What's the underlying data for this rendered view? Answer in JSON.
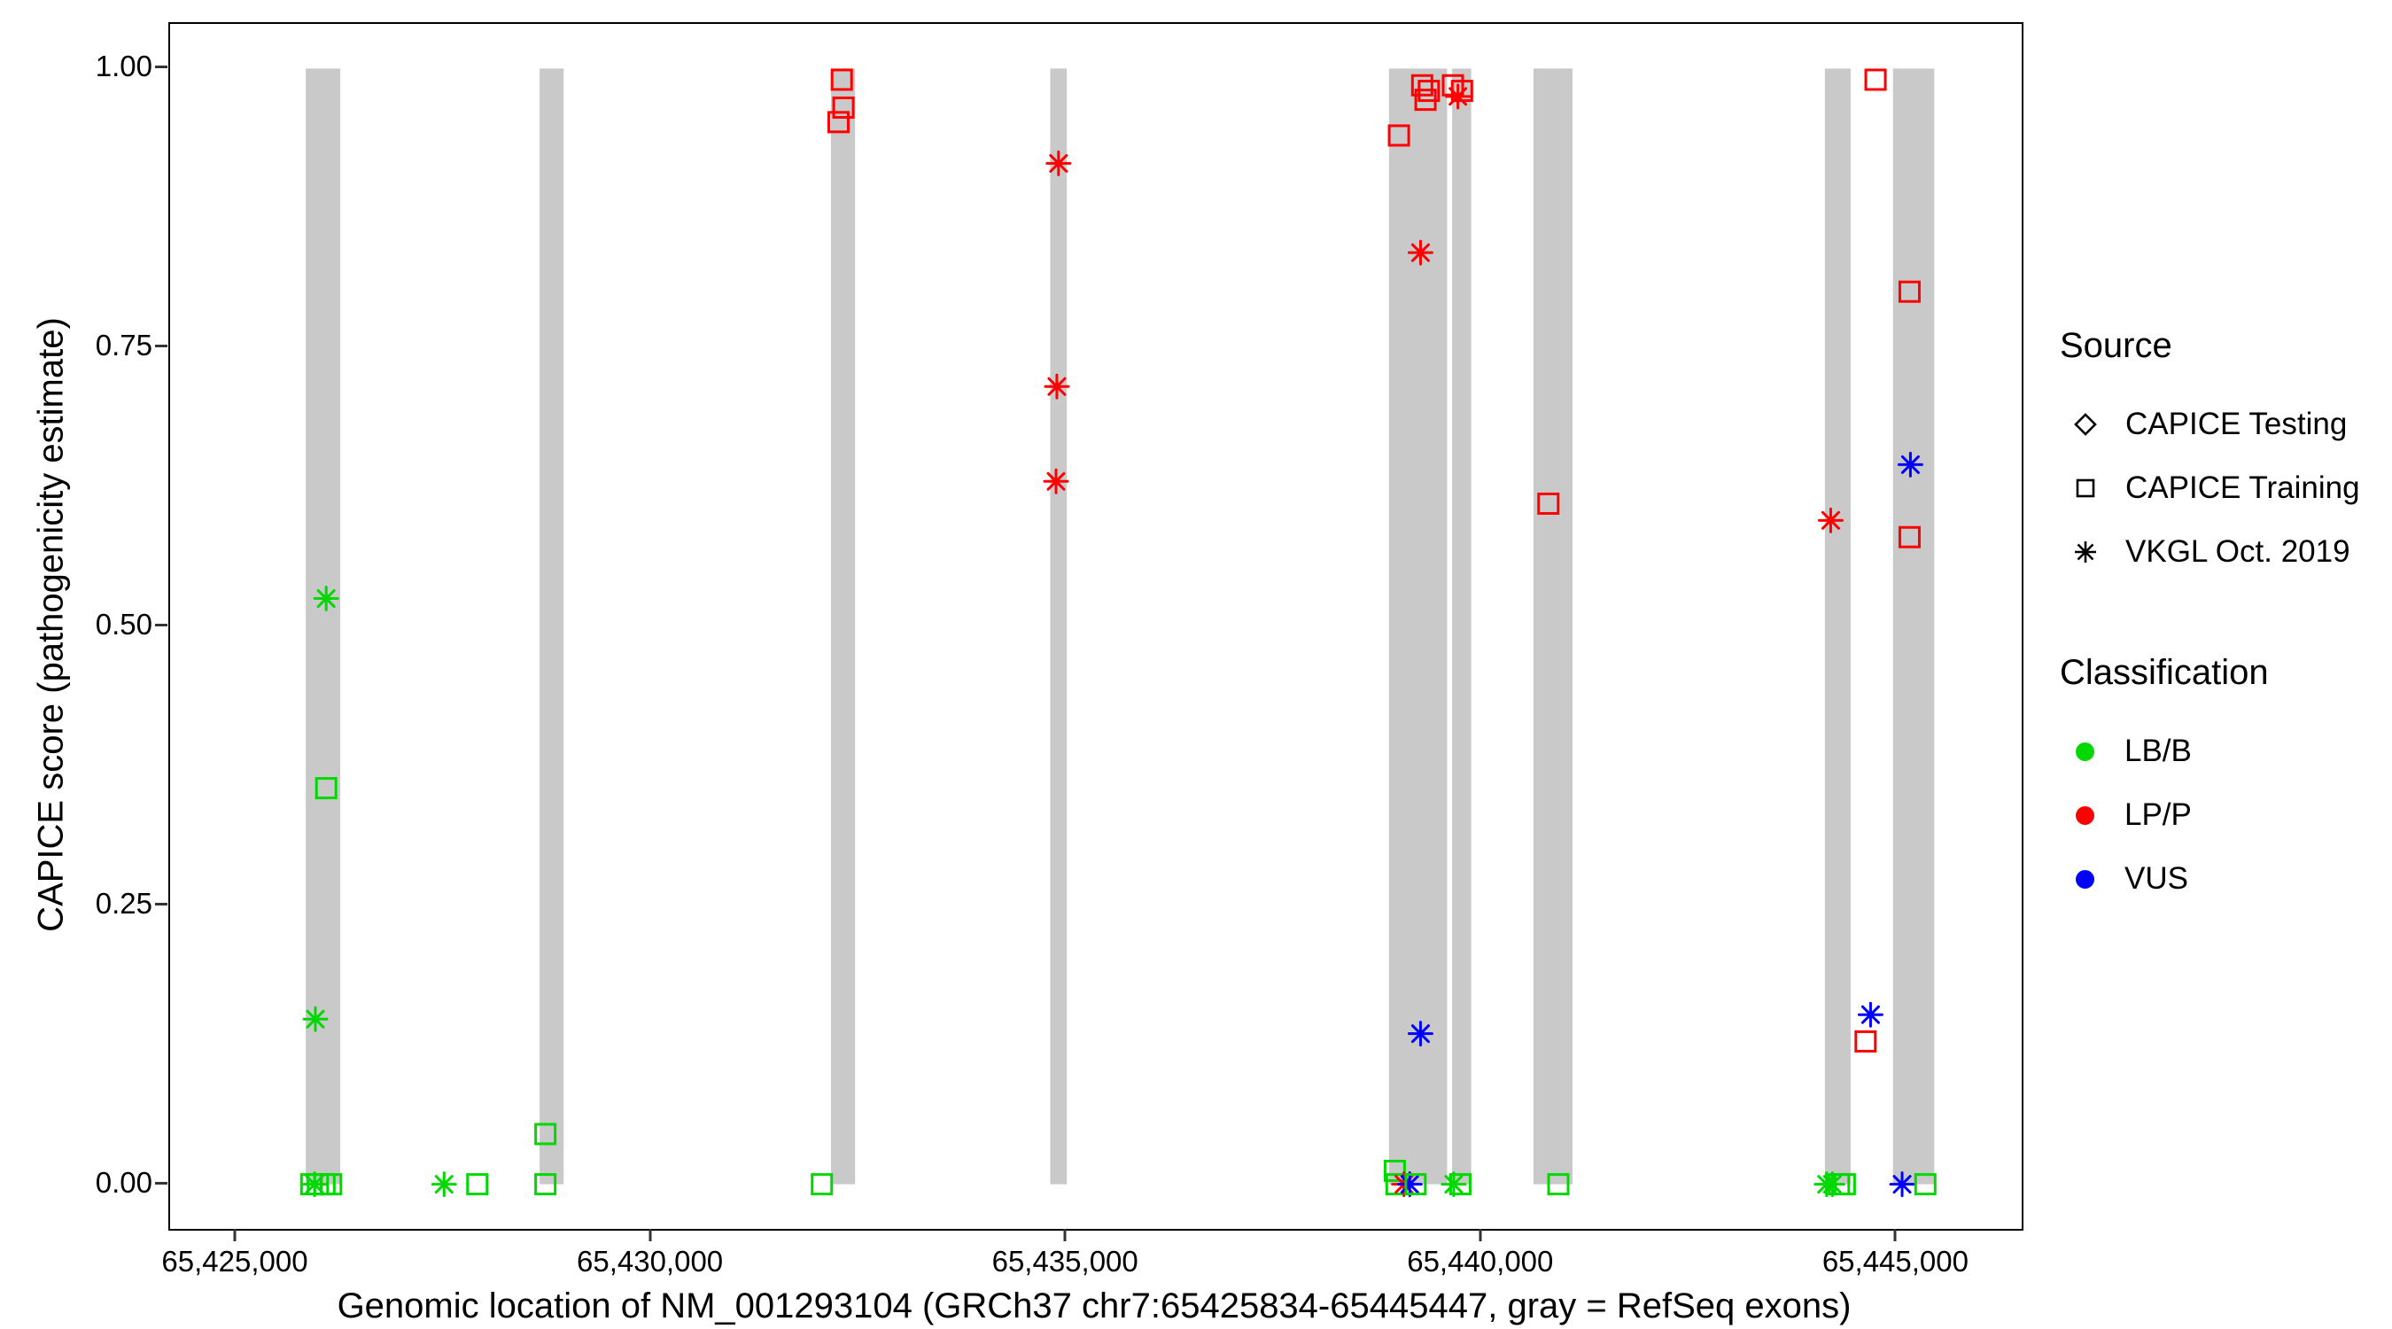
{
  "chart_data": {
    "type": "scatter",
    "title": "",
    "xlabel": "Genomic location of NM_001293104 (GRCh37 chr7:65425834-65445447, gray = RefSeq exons)",
    "ylabel": "CAPICE score (pathogenicity estimate)",
    "xlim": [
      65424200,
      65446500
    ],
    "ylim": [
      -0.04,
      1.04
    ],
    "grid": false,
    "legend_position": "right",
    "x_ticks": [
      {
        "value": 65425000,
        "label": "65,425,000"
      },
      {
        "value": 65430000,
        "label": "65,430,000"
      },
      {
        "value": 65435000,
        "label": "65,435,000"
      },
      {
        "value": 65440000,
        "label": "65,440,000"
      },
      {
        "value": 65445000,
        "label": "65,445,000"
      }
    ],
    "y_ticks": [
      {
        "value": 0.0,
        "label": "0.00"
      },
      {
        "value": 0.25,
        "label": "0.25"
      },
      {
        "value": 0.5,
        "label": "0.50"
      },
      {
        "value": 0.75,
        "label": "0.75"
      },
      {
        "value": 1.0,
        "label": "1.00"
      }
    ],
    "exon_color": "#c9c9c9",
    "exons": [
      [
        65425834,
        65426250
      ],
      [
        65428650,
        65428940
      ],
      [
        65432160,
        65432450
      ],
      [
        65434800,
        65435000
      ],
      [
        65438880,
        65439580
      ],
      [
        65439640,
        65439870
      ],
      [
        65440620,
        65441090
      ],
      [
        65444130,
        65444440
      ],
      [
        65444950,
        65445447
      ]
    ],
    "classification_colors": {
      "LB/B": "#00d800",
      "LP/P": "#ff0000",
      "VUS": "#0000ff"
    },
    "points": [
      {
        "x": 65425900,
        "y": 0.0,
        "shape": "square",
        "cls": "LB/B"
      },
      {
        "x": 65425980,
        "y": 0.0,
        "shape": "square",
        "cls": "LB/B"
      },
      {
        "x": 65426060,
        "y": 0.0,
        "shape": "square",
        "cls": "LB/B"
      },
      {
        "x": 65426140,
        "y": 0.0,
        "shape": "square",
        "cls": "LB/B"
      },
      {
        "x": 65425940,
        "y": 0.0,
        "shape": "asterisk",
        "cls": "LB/B"
      },
      {
        "x": 65425950,
        "y": 0.148,
        "shape": "asterisk",
        "cls": "LB/B"
      },
      {
        "x": 65426080,
        "y": 0.525,
        "shape": "asterisk",
        "cls": "LB/B"
      },
      {
        "x": 65426080,
        "y": 0.355,
        "shape": "square",
        "cls": "LB/B"
      },
      {
        "x": 65427500,
        "y": 0.0,
        "shape": "asterisk",
        "cls": "LB/B"
      },
      {
        "x": 65427900,
        "y": 0.0,
        "shape": "square",
        "cls": "LB/B"
      },
      {
        "x": 65428720,
        "y": 0.045,
        "shape": "square",
        "cls": "LB/B"
      },
      {
        "x": 65428720,
        "y": 0.0,
        "shape": "square",
        "cls": "LB/B"
      },
      {
        "x": 65432050,
        "y": 0.0,
        "shape": "square",
        "cls": "LB/B"
      },
      {
        "x": 65432250,
        "y": 0.952,
        "shape": "square",
        "cls": "LP/P"
      },
      {
        "x": 65432310,
        "y": 0.965,
        "shape": "square",
        "cls": "LP/P"
      },
      {
        "x": 65432290,
        "y": 0.99,
        "shape": "square",
        "cls": "LP/P"
      },
      {
        "x": 65434900,
        "y": 0.915,
        "shape": "asterisk",
        "cls": "LP/P"
      },
      {
        "x": 65434880,
        "y": 0.715,
        "shape": "asterisk",
        "cls": "LP/P"
      },
      {
        "x": 65434870,
        "y": 0.63,
        "shape": "asterisk",
        "cls": "LP/P"
      },
      {
        "x": 65439000,
        "y": 0.94,
        "shape": "square",
        "cls": "LP/P"
      },
      {
        "x": 65439280,
        "y": 0.985,
        "shape": "square",
        "cls": "LP/P"
      },
      {
        "x": 65439360,
        "y": 0.98,
        "shape": "square",
        "cls": "LP/P"
      },
      {
        "x": 65439320,
        "y": 0.972,
        "shape": "square",
        "cls": "LP/P"
      },
      {
        "x": 65439650,
        "y": 0.985,
        "shape": "square",
        "cls": "LP/P"
      },
      {
        "x": 65439710,
        "y": 0.975,
        "shape": "asterisk",
        "cls": "LP/P"
      },
      {
        "x": 65439760,
        "y": 0.98,
        "shape": "square",
        "cls": "LP/P"
      },
      {
        "x": 65439260,
        "y": 0.835,
        "shape": "asterisk",
        "cls": "LP/P"
      },
      {
        "x": 65439260,
        "y": 0.135,
        "shape": "asterisk",
        "cls": "VUS"
      },
      {
        "x": 65438950,
        "y": 0.012,
        "shape": "square",
        "cls": "LB/B"
      },
      {
        "x": 65438970,
        "y": 0.0,
        "shape": "square",
        "cls": "LB/B"
      },
      {
        "x": 65439060,
        "y": 0.0,
        "shape": "asterisk",
        "cls": "LP/P"
      },
      {
        "x": 65439130,
        "y": 0.0,
        "shape": "asterisk",
        "cls": "VUS"
      },
      {
        "x": 65439200,
        "y": 0.0,
        "shape": "square",
        "cls": "LB/B"
      },
      {
        "x": 65439660,
        "y": 0.0,
        "shape": "asterisk",
        "cls": "LB/B"
      },
      {
        "x": 65439740,
        "y": 0.0,
        "shape": "square",
        "cls": "LB/B"
      },
      {
        "x": 65440800,
        "y": 0.61,
        "shape": "square",
        "cls": "LP/P"
      },
      {
        "x": 65440920,
        "y": 0.0,
        "shape": "square",
        "cls": "LB/B"
      },
      {
        "x": 65444200,
        "y": 0.595,
        "shape": "asterisk",
        "cls": "LP/P"
      },
      {
        "x": 65444150,
        "y": 0.0,
        "shape": "asterisk",
        "cls": "LB/B"
      },
      {
        "x": 65444220,
        "y": 0.0,
        "shape": "asterisk",
        "cls": "LB/B"
      },
      {
        "x": 65444300,
        "y": 0.0,
        "shape": "square",
        "cls": "LB/B"
      },
      {
        "x": 65444370,
        "y": 0.0,
        "shape": "square",
        "cls": "LB/B"
      },
      {
        "x": 65444620,
        "y": 0.128,
        "shape": "square",
        "cls": "LP/P"
      },
      {
        "x": 65444680,
        "y": 0.152,
        "shape": "asterisk",
        "cls": "VUS"
      },
      {
        "x": 65444740,
        "y": 0.99,
        "shape": "square",
        "cls": "LP/P"
      },
      {
        "x": 65445150,
        "y": 0.8,
        "shape": "square",
        "cls": "LP/P"
      },
      {
        "x": 65445160,
        "y": 0.645,
        "shape": "asterisk",
        "cls": "VUS"
      },
      {
        "x": 65445150,
        "y": 0.58,
        "shape": "square",
        "cls": "LP/P"
      },
      {
        "x": 65445060,
        "y": 0.0,
        "shape": "asterisk",
        "cls": "VUS"
      },
      {
        "x": 65445340,
        "y": 0.0,
        "shape": "square",
        "cls": "LB/B"
      }
    ],
    "legend": {
      "source": {
        "title": "Source",
        "items": [
          {
            "shape": "diamond",
            "label": "CAPICE Testing"
          },
          {
            "shape": "square",
            "label": "CAPICE Training"
          },
          {
            "shape": "asterisk",
            "label": "VKGL Oct. 2019"
          }
        ]
      },
      "classification": {
        "title": "Classification",
        "items": [
          {
            "color": "#00d800",
            "label": "LB/B"
          },
          {
            "color": "#ff0000",
            "label": "LP/P"
          },
          {
            "color": "#0000ff",
            "label": "VUS"
          }
        ]
      }
    }
  }
}
